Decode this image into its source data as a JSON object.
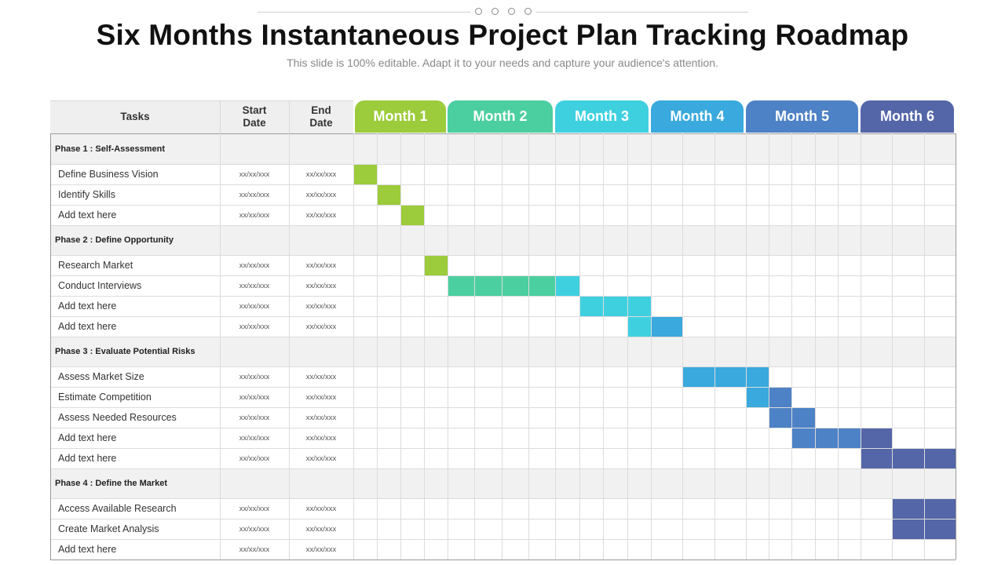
{
  "header": {
    "title": "Six Months Instantaneous Project Plan Tracking Roadmap",
    "subtitle": "This slide is 100% editable. Adapt it to your needs and capture your audience's attention."
  },
  "columns": {
    "tasks": "Tasks",
    "start": "Start\nDate",
    "end": "End\nDate"
  },
  "months": [
    {
      "label": "Month 1",
      "color": "#9ccb3b"
    },
    {
      "label": "Month 2",
      "color": "#4ccfa0"
    },
    {
      "label": "Month 3",
      "color": "#3fd0e0"
    },
    {
      "label": "Month 4",
      "color": "#3aa9dd"
    },
    {
      "label": "Month 5",
      "color": "#4e82c6"
    },
    {
      "label": "Month 6",
      "color": "#5466a8"
    }
  ],
  "rows": [
    {
      "type": "phase",
      "label": "Phase 1 : Self-Assessment"
    },
    {
      "type": "task",
      "label": "Define Business Vision",
      "start": "xx/xx/xxx",
      "end": "xx/xx/xxx",
      "fills": [
        [
          0,
          0
        ]
      ]
    },
    {
      "type": "task",
      "label": "Identify Skills",
      "start": "xx/xx/xxx",
      "end": "xx/xx/xxx",
      "fills": [
        [
          1,
          0
        ]
      ]
    },
    {
      "type": "task",
      "label": "Add text here",
      "start": "xx/xx/xxx",
      "end": "xx/xx/xxx",
      "fills": [
        [
          2,
          0
        ]
      ]
    },
    {
      "type": "phase",
      "label": "Phase 2 : Define Opportunity"
    },
    {
      "type": "task",
      "label": "Research Market",
      "start": "xx/xx/xxx",
      "end": "xx/xx/xxx",
      "fills": [
        [
          3,
          0
        ]
      ]
    },
    {
      "type": "task",
      "label": "Conduct Interviews",
      "start": "xx/xx/xxx",
      "end": "xx/xx/xxx",
      "fills": [
        [
          4,
          1
        ],
        [
          5,
          1
        ],
        [
          6,
          1
        ],
        [
          7,
          1
        ],
        [
          8,
          2
        ]
      ]
    },
    {
      "type": "task",
      "label": "Add text here",
      "start": "xx/xx/xxx",
      "end": "xx/xx/xxx",
      "fills": [
        [
          9,
          2
        ],
        [
          10,
          2
        ],
        [
          11,
          2
        ]
      ]
    },
    {
      "type": "task",
      "label": "Add text here",
      "start": "xx/xx/xxx",
      "end": "xx/xx/xxx",
      "fills": [
        [
          11,
          2
        ],
        [
          12,
          3
        ]
      ]
    },
    {
      "type": "phase",
      "label": "Phase 3 : Evaluate Potential Risks"
    },
    {
      "type": "task",
      "label": "Assess Market Size",
      "start": "xx/xx/xxx",
      "end": "xx/xx/xxx",
      "fills": [
        [
          13,
          3
        ],
        [
          14,
          3
        ],
        [
          15,
          3
        ]
      ]
    },
    {
      "type": "task",
      "label": "Estimate Competition",
      "start": "xx/xx/xxx",
      "end": "xx/xx/xxx",
      "fills": [
        [
          15,
          3
        ],
        [
          16,
          4
        ]
      ]
    },
    {
      "type": "task",
      "label": "Assess Needed Resources",
      "start": "xx/xx/xxx",
      "end": "xx/xx/xxx",
      "fills": [
        [
          16,
          4
        ],
        [
          17,
          4
        ]
      ]
    },
    {
      "type": "task",
      "label": "Add text here",
      "start": "xx/xx/xxx",
      "end": "xx/xx/xxx",
      "fills": [
        [
          17,
          4
        ],
        [
          18,
          4
        ],
        [
          19,
          4
        ],
        [
          20,
          5
        ]
      ]
    },
    {
      "type": "task",
      "label": "Add text here",
      "start": "xx/xx/xxx",
      "end": "xx/xx/xxx",
      "fills": [
        [
          20,
          5
        ],
        [
          21,
          5
        ],
        [
          22,
          5
        ]
      ]
    },
    {
      "type": "phase",
      "label": "Phase 4 : Define the Market"
    },
    {
      "type": "task",
      "label": "Access Available Research",
      "start": "xx/xx/xxx",
      "end": "xx/xx/xxx",
      "fills": [
        [
          21,
          5
        ],
        [
          22,
          5
        ]
      ]
    },
    {
      "type": "task",
      "label": "Create Market Analysis",
      "start": "xx/xx/xxx",
      "end": "xx/xx/xxx",
      "fills": [
        [
          21,
          5
        ],
        [
          22,
          5
        ]
      ]
    },
    {
      "type": "task",
      "label": "Add text here",
      "start": "xx/xx/xxx",
      "end": "xx/xx/xxx",
      "fills": []
    }
  ]
}
